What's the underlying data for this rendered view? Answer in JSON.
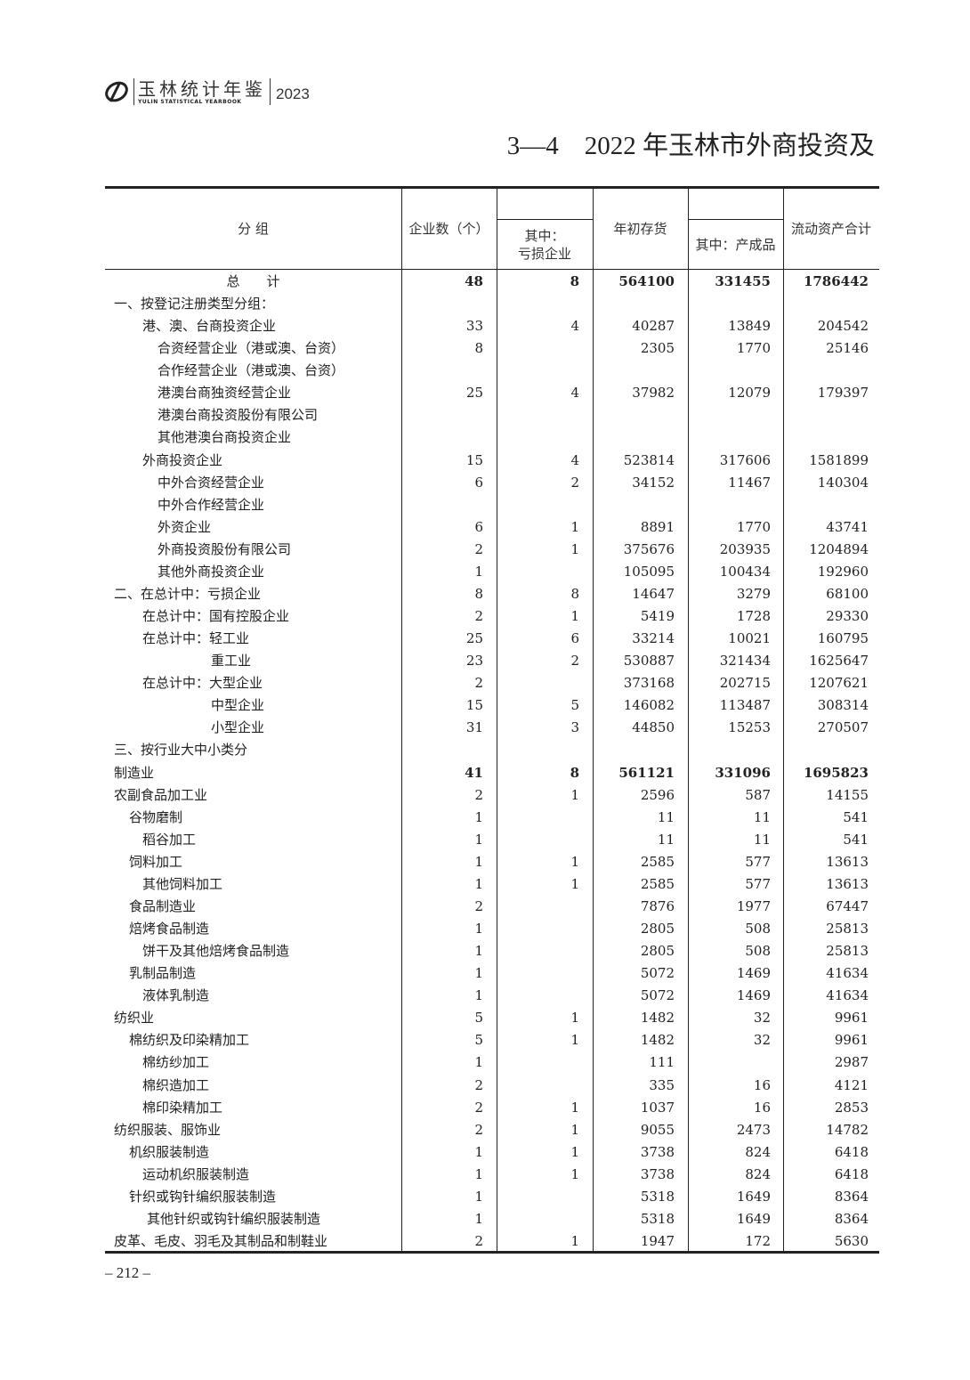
{
  "header": {
    "logo_cn": "玉林统计年鉴",
    "logo_en": "YULIN STATISTICAL YEARBOOK",
    "year": "2023"
  },
  "title": "3—4　2022 年玉林市外商投资及",
  "columns": {
    "group": "分 组",
    "enterprises": "企业数（个）",
    "loss_enterprises": [
      "其中：",
      "亏损企业"
    ],
    "inventory_begin": "年初存货",
    "finished_goods": "其中：产成品",
    "current_assets": "流动资产合计"
  },
  "rows": [
    {
      "label": "总　　计",
      "indent": "total",
      "bold": true,
      "v": [
        "48",
        "8",
        "564100",
        "331455",
        "1786442"
      ]
    },
    {
      "label": "一、按登记注册类型分组：",
      "indent": 0,
      "v": [
        "",
        "",
        "",
        "",
        ""
      ]
    },
    {
      "label": "港、澳、台商投资企业",
      "indent": 2,
      "v": [
        "33",
        "4",
        "40287",
        "13849",
        "204542"
      ]
    },
    {
      "label": "合资经营企业（港或澳、台资）",
      "indent": 3,
      "v": [
        "8",
        "",
        "2305",
        "1770",
        "25146"
      ]
    },
    {
      "label": "合作经营企业（港或澳、台资）",
      "indent": 3,
      "v": [
        "",
        "",
        "",
        "",
        ""
      ]
    },
    {
      "label": "港澳台商独资经营企业",
      "indent": 3,
      "v": [
        "25",
        "4",
        "37982",
        "12079",
        "179397"
      ]
    },
    {
      "label": "港澳台商投资股份有限公司",
      "indent": 3,
      "v": [
        "",
        "",
        "",
        "",
        ""
      ]
    },
    {
      "label": "其他港澳台商投资企业",
      "indent": 3,
      "v": [
        "",
        "",
        "",
        "",
        ""
      ]
    },
    {
      "label": "外商投资企业",
      "indent": 2,
      "v": [
        "15",
        "4",
        "523814",
        "317606",
        "1581899"
      ]
    },
    {
      "label": "中外合资经营企业",
      "indent": 3,
      "v": [
        "6",
        "2",
        "34152",
        "11467",
        "140304"
      ]
    },
    {
      "label": "中外合作经营企业",
      "indent": 3,
      "v": [
        "",
        "",
        "",
        "",
        ""
      ]
    },
    {
      "label": "外资企业",
      "indent": 3,
      "v": [
        "6",
        "1",
        "8891",
        "1770",
        "43741"
      ]
    },
    {
      "label": "外商投资股份有限公司",
      "indent": 3,
      "v": [
        "2",
        "1",
        "375676",
        "203935",
        "1204894"
      ]
    },
    {
      "label": "其他外商投资企业",
      "indent": 3,
      "v": [
        "1",
        "",
        "105095",
        "100434",
        "192960"
      ]
    },
    {
      "label": "二、在总计中：亏损企业",
      "indent": 0,
      "v": [
        "8",
        "8",
        "14647",
        "3279",
        "68100"
      ]
    },
    {
      "label": "在总计中：国有控股企业",
      "indent": 2,
      "v": [
        "2",
        "1",
        "5419",
        "1728",
        "29330"
      ]
    },
    {
      "label": "在总计中：轻工业",
      "indent": 2,
      "v": [
        "25",
        "6",
        "33214",
        "10021",
        "160795"
      ]
    },
    {
      "label": "重工业",
      "indent": 5,
      "v": [
        "23",
        "2",
        "530887",
        "321434",
        "1625647"
      ]
    },
    {
      "label": "在总计中：大型企业",
      "indent": 2,
      "v": [
        "2",
        "",
        "373168",
        "202715",
        "1207621"
      ]
    },
    {
      "label": "中型企业",
      "indent": 5,
      "v": [
        "15",
        "5",
        "146082",
        "113487",
        "308314"
      ]
    },
    {
      "label": "小型企业",
      "indent": 5,
      "v": [
        "31",
        "3",
        "44850",
        "15253",
        "270507"
      ]
    },
    {
      "label": "三、按行业大中小类分",
      "indent": 0,
      "v": [
        "",
        "",
        "",
        "",
        ""
      ]
    },
    {
      "label": "制造业",
      "indent": 0,
      "bold": true,
      "v": [
        "41",
        "8",
        "561121",
        "331096",
        "1695823"
      ]
    },
    {
      "label": "农副食品加工业",
      "indent": 0,
      "v": [
        "2",
        "1",
        "2596",
        "587",
        "14155"
      ]
    },
    {
      "label": "谷物磨制",
      "indent": 1,
      "v": [
        "1",
        "",
        "11",
        "11",
        "541"
      ]
    },
    {
      "label": "稻谷加工",
      "indent": 2,
      "v": [
        "1",
        "",
        "11",
        "11",
        "541"
      ]
    },
    {
      "label": "饲料加工",
      "indent": 1,
      "v": [
        "1",
        "1",
        "2585",
        "577",
        "13613"
      ]
    },
    {
      "label": "其他饲料加工",
      "indent": 2,
      "v": [
        "1",
        "1",
        "2585",
        "577",
        "13613"
      ]
    },
    {
      "label": "食品制造业",
      "indent": 1,
      "v": [
        "2",
        "",
        "7876",
        "1977",
        "67447"
      ]
    },
    {
      "label": "焙烤食品制造",
      "indent": 1,
      "v": [
        "1",
        "",
        "2805",
        "508",
        "25813"
      ]
    },
    {
      "label": "饼干及其他焙烤食品制造",
      "indent": 2,
      "v": [
        "1",
        "",
        "2805",
        "508",
        "25813"
      ]
    },
    {
      "label": "乳制品制造",
      "indent": 1,
      "v": [
        "1",
        "",
        "5072",
        "1469",
        "41634"
      ]
    },
    {
      "label": "液体乳制造",
      "indent": 2,
      "v": [
        "1",
        "",
        "5072",
        "1469",
        "41634"
      ]
    },
    {
      "label": "纺织业",
      "indent": 0,
      "v": [
        "5",
        "1",
        "1482",
        "32",
        "9961"
      ]
    },
    {
      "label": "棉纺织及印染精加工",
      "indent": 1,
      "v": [
        "5",
        "1",
        "1482",
        "32",
        "9961"
      ]
    },
    {
      "label": "棉纺纱加工",
      "indent": 2,
      "v": [
        "1",
        "",
        "111",
        "",
        "2987"
      ]
    },
    {
      "label": "棉织造加工",
      "indent": 2,
      "v": [
        "2",
        "",
        "335",
        "16",
        "4121"
      ]
    },
    {
      "label": "棉印染精加工",
      "indent": 2,
      "v": [
        "2",
        "1",
        "1037",
        "16",
        "2853"
      ]
    },
    {
      "label": "纺织服装、服饰业",
      "indent": 0,
      "v": [
        "2",
        "1",
        "9055",
        "2473",
        "14782"
      ]
    },
    {
      "label": "机织服装制造",
      "indent": 1,
      "v": [
        "1",
        "1",
        "3738",
        "824",
        "6418"
      ]
    },
    {
      "label": "运动机织服装制造",
      "indent": 2,
      "v": [
        "1",
        "1",
        "3738",
        "824",
        "6418"
      ]
    },
    {
      "label": "针织或钩针编织服装制造",
      "indent": 1,
      "v": [
        "1",
        "",
        "5318",
        "1649",
        "8364"
      ]
    },
    {
      "label": "其他针织或钩针编织服装制造",
      "indent": 4,
      "v": [
        "1",
        "",
        "5318",
        "1649",
        "8364"
      ]
    },
    {
      "label": "皮革、毛皮、羽毛及其制品和制鞋业",
      "indent": 0,
      "v": [
        "2",
        "1",
        "1947",
        "172",
        "5630"
      ]
    }
  ],
  "page_number": "– 212 –"
}
